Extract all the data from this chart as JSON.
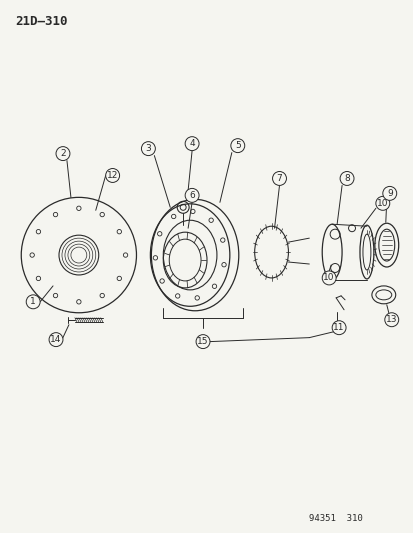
{
  "title": "21D–310",
  "footer": "94351  310",
  "bg_color": "#f5f5f0",
  "line_color": "#2a2a2a",
  "title_fontsize": 9,
  "footer_fontsize": 6.5,
  "label_fontsize": 6.5
}
